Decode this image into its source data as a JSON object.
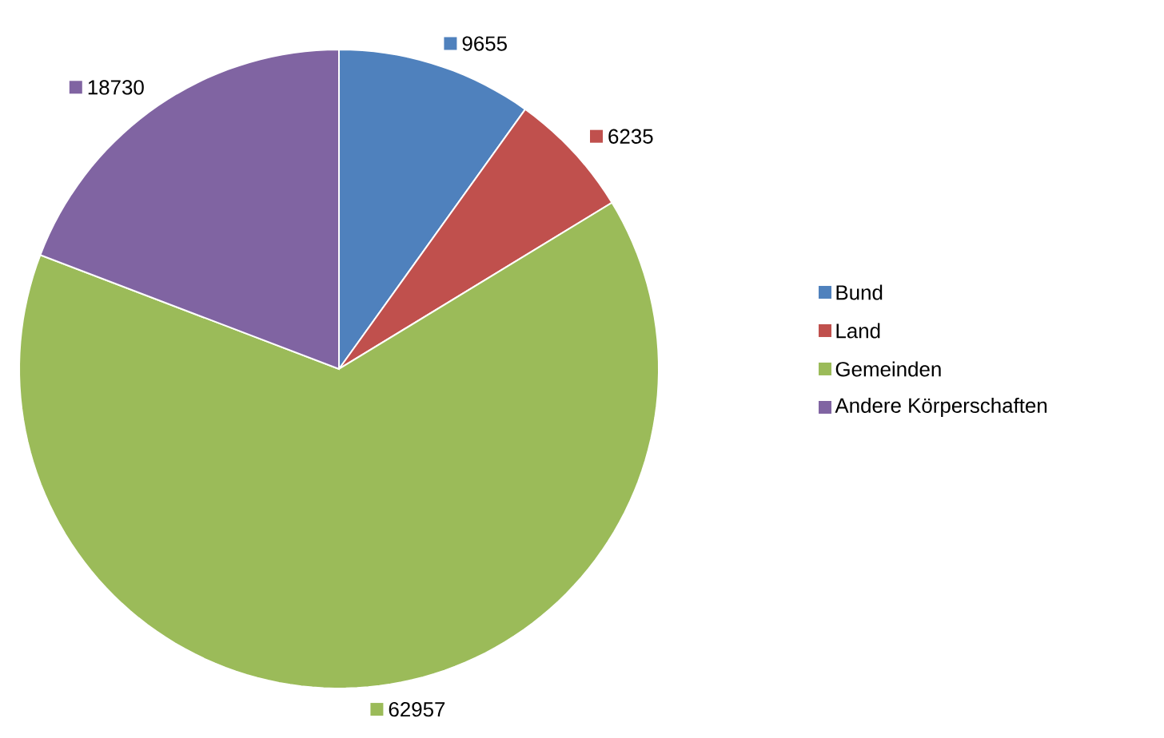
{
  "chart_data": {
    "type": "pie",
    "categories": [
      "Bund",
      "Land",
      "Gemeinden",
      "Andere Körperschaften"
    ],
    "values": [
      9655,
      6235,
      62957,
      18730
    ],
    "colors": [
      "#4f81bd",
      "#c0504d",
      "#9bbb59",
      "#8064a2"
    ],
    "data_labels": true,
    "legend": "right"
  }
}
